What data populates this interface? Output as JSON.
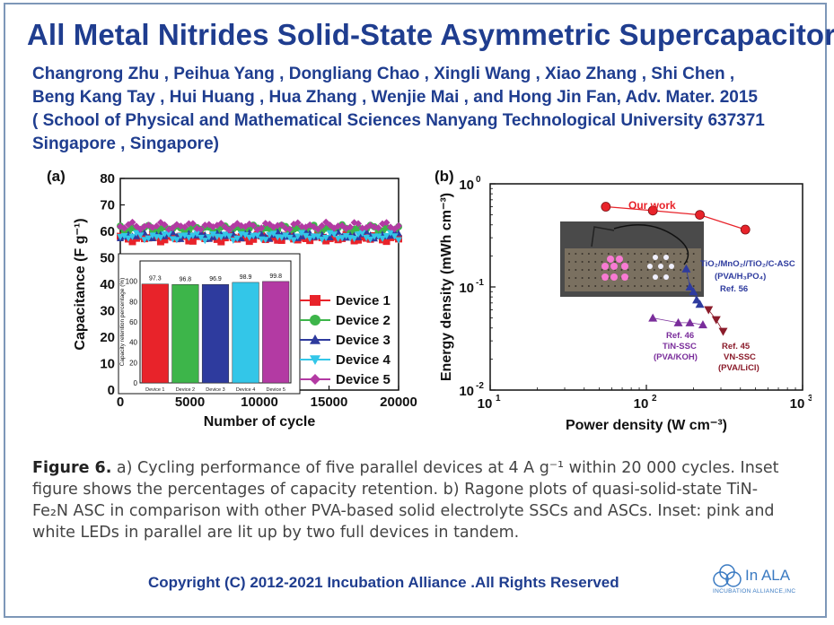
{
  "title": "All Metal Nitrides Solid-State Asymmetric Supercapacitors",
  "authors": [
    "Changrong Zhu , Peihua Yang , Dongliang Chao , Xingli Wang , Xiao Zhang , Shi Chen ,",
    "Beng Kang Tay , Hui Huang , Hua Zhang , Wenjie Mai , and Hong Jin Fan, Adv. Mater. 2015",
    "( School of Physical and Mathematical Sciences Nanyang Technological University 637371",
    "Singapore , Singapore)"
  ],
  "figure": {
    "panel_a_label": "(a)",
    "panel_b_label": "(b)"
  },
  "caption": {
    "label": "Figure 6.",
    "lines": [
      " a) Cycling performance of five parallel devices at 4 A g⁻¹ within 20 000 cycles. Inset",
      "figure shows the percentages of capacity retention. b) Ragone plots of quasi-solid-state TiN-",
      "Fe₂N ASC in comparison with other PVA-based solid electrolyte SSCs and ASCs. Inset: pink and",
      "white LEDs in parallel are lit up by two full devices in tandem."
    ]
  },
  "copyright": "Copyright (C) 2012-2021  Incubation Alliance .All Rights Reserved",
  "logo": {
    "text": "In ALA",
    "subtext": "INCUBATION ALLIANCE,INC",
    "color": "#3a7ac2"
  },
  "chart_data": [
    {
      "type": "scatter",
      "panel": "(a)",
      "xlabel": "Number of cycle",
      "ylabel": "Capacitance (F g⁻¹)",
      "xlim": [
        0,
        20000
      ],
      "ylim": [
        0,
        80
      ],
      "xticks": [
        "0",
        "5000",
        "10000",
        "15000",
        "20000"
      ],
      "yticks": [
        "0",
        "10",
        "20",
        "30",
        "40",
        "50",
        "60",
        "70",
        "80"
      ],
      "legend_position": "right",
      "series": [
        {
          "name": "Device 1",
          "color": "#e8232a",
          "marker": "square",
          "level": 57.5
        },
        {
          "name": "Device 2",
          "color": "#3db54a",
          "marker": "circle",
          "level": 61
        },
        {
          "name": "Device 3",
          "color": "#2e3b9e",
          "marker": "triangle-up",
          "level": 58.5
        },
        {
          "name": "Device 4",
          "color": "#33c6e8",
          "marker": "triangle-down",
          "level": 58
        },
        {
          "name": "Device 5",
          "color": "#b33aa3",
          "marker": "diamond",
          "level": 62
        }
      ],
      "inset": {
        "type": "bar",
        "ylabel": "Capacity retention percentage (%)",
        "ylim": [
          0,
          120
        ],
        "yticks": [
          "0",
          "20",
          "40",
          "60",
          "80",
          "100"
        ],
        "categories": [
          "Device 1",
          "Device 2",
          "Device 3",
          "Device 4",
          "Device 5"
        ],
        "values": [
          97.3,
          96.8,
          96.9,
          98.9,
          99.8
        ],
        "labels": [
          "97.3",
          "96.8",
          "96.9",
          "98.9",
          "99.8"
        ],
        "colors": [
          "#e8232a",
          "#3db54a",
          "#2e3b9e",
          "#33c6e8",
          "#b33aa3"
        ]
      }
    },
    {
      "type": "scatter",
      "panel": "(b)",
      "xscale": "log",
      "yscale": "log",
      "xlabel": "Power density (W cm⁻³)",
      "ylabel": "Energy density (mWh cm⁻³)",
      "xlim": [
        10,
        1000
      ],
      "ylim": [
        0.01,
        1
      ],
      "series": [
        {
          "name": "Our work",
          "color": "#e8232a",
          "marker": "circle",
          "x": [
            55,
            110,
            220,
            430
          ],
          "y": [
            0.6,
            0.55,
            0.5,
            0.36
          ]
        },
        {
          "name": "TiO₂/MnO₂//TiO₂/C-ASC (PVA/H₃PO₄) Ref. 56",
          "color": "#2e3b9e",
          "marker": "triangle-up",
          "x": [
            180,
            190,
            200,
            210,
            220
          ],
          "y": [
            0.15,
            0.1,
            0.09,
            0.075,
            0.068
          ]
        },
        {
          "name": "Ref. 46 TiN-SSC (PVA/KOH)",
          "color": "#7a2d9b",
          "marker": "triangle-up",
          "x": [
            110,
            160,
            190,
            230
          ],
          "y": [
            0.05,
            0.045,
            0.045,
            0.043
          ]
        },
        {
          "name": "Ref. 45 VN-SSC (PVA/LiCl)",
          "color": "#8b1c2b",
          "marker": "triangle-down",
          "x": [
            250,
            280,
            310
          ],
          "y": [
            0.06,
            0.048,
            0.037
          ]
        }
      ],
      "annotations": [
        "Our work",
        "TiO₂/MnO₂//TiO₂/C-ASC",
        "(PVA/H₃PO₄)",
        "Ref. 56",
        "Ref. 46",
        "TiN-SSC",
        "(PVA/KOH)",
        "Ref. 45",
        "VN-SSC",
        "(PVA/LiCl)"
      ]
    }
  ]
}
